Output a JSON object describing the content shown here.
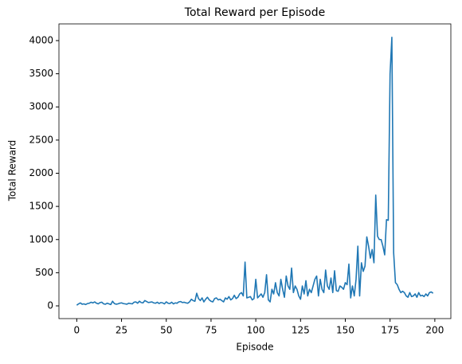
{
  "chart_data": {
    "type": "line",
    "title": "Total Reward per Episode",
    "x_label": "Episode",
    "y_label": "Total Reward",
    "x": [
      0,
      1,
      2,
      3,
      4,
      5,
      6,
      7,
      8,
      9,
      10,
      11,
      12,
      13,
      14,
      15,
      16,
      17,
      18,
      19,
      20,
      21,
      22,
      23,
      24,
      25,
      26,
      27,
      28,
      29,
      30,
      31,
      32,
      33,
      34,
      35,
      36,
      37,
      38,
      39,
      40,
      41,
      42,
      43,
      44,
      45,
      46,
      47,
      48,
      49,
      50,
      51,
      52,
      53,
      54,
      55,
      56,
      57,
      58,
      59,
      60,
      61,
      62,
      63,
      64,
      65,
      66,
      67,
      68,
      69,
      70,
      71,
      72,
      73,
      74,
      75,
      76,
      77,
      78,
      79,
      80,
      81,
      82,
      83,
      84,
      85,
      86,
      87,
      88,
      89,
      90,
      91,
      92,
      93,
      94,
      95,
      96,
      97,
      98,
      99,
      100,
      101,
      102,
      103,
      104,
      105,
      106,
      107,
      108,
      109,
      110,
      111,
      112,
      113,
      114,
      115,
      116,
      117,
      118,
      119,
      120,
      121,
      122,
      123,
      124,
      125,
      126,
      127,
      128,
      129,
      130,
      131,
      132,
      133,
      134,
      135,
      136,
      137,
      138,
      139,
      140,
      141,
      142,
      143,
      144,
      145,
      146,
      147,
      148,
      149,
      150,
      151,
      152,
      153,
      154,
      155,
      156,
      157,
      158,
      159,
      160,
      161,
      162,
      163,
      164,
      165,
      166,
      167,
      168,
      169,
      170,
      171,
      172,
      173,
      174,
      175,
      176,
      177,
      178,
      179,
      180,
      181,
      182,
      183,
      184,
      185,
      186,
      187,
      188,
      189,
      190,
      191,
      192,
      193,
      194,
      195,
      196,
      197,
      198,
      199
    ],
    "series": [
      {
        "name": "Total Reward",
        "color": "#1f77b4",
        "values": [
          10,
          30,
          45,
          25,
          30,
          20,
          35,
          40,
          55,
          45,
          60,
          40,
          30,
          50,
          55,
          30,
          25,
          40,
          30,
          20,
          70,
          35,
          25,
          30,
          40,
          45,
          35,
          30,
          25,
          40,
          35,
          30,
          55,
          60,
          40,
          70,
          50,
          45,
          80,
          65,
          50,
          55,
          60,
          45,
          40,
          55,
          35,
          50,
          45,
          30,
          60,
          40,
          35,
          55,
          30,
          45,
          40,
          60,
          65,
          50,
          55,
          45,
          40,
          60,
          100,
          80,
          70,
          190,
          110,
          80,
          120,
          60,
          100,
          130,
          90,
          70,
          60,
          110,
          120,
          90,
          100,
          80,
          60,
          120,
          100,
          140,
          90,
          110,
          160,
          110,
          130,
          180,
          200,
          150,
          660,
          120,
          130,
          140,
          90,
          110,
          400,
          120,
          150,
          180,
          130,
          200,
          470,
          90,
          60,
          250,
          180,
          350,
          200,
          150,
          400,
          250,
          130,
          450,
          300,
          250,
          570,
          200,
          300,
          250,
          150,
          100,
          300,
          180,
          380,
          150,
          250,
          200,
          300,
          400,
          450,
          150,
          400,
          250,
          200,
          540,
          300,
          250,
          420,
          200,
          530,
          230,
          220,
          300,
          280,
          250,
          350,
          320,
          630,
          120,
          300,
          150,
          400,
          900,
          150,
          650,
          520,
          600,
          1040,
          900,
          720,
          850,
          650,
          1670,
          1050,
          1000,
          1000,
          900,
          770,
          1300,
          1290,
          3500,
          4050,
          800,
          350,
          320,
          250,
          200,
          220,
          200,
          150,
          130,
          200,
          140,
          150,
          180,
          130,
          200,
          150,
          160,
          140,
          180,
          150,
          200,
          210,
          190
        ]
      }
    ],
    "xlim": [
      -9.95,
      208.95
    ],
    "xticks": [
      0,
      25,
      50,
      75,
      100,
      125,
      150,
      175,
      200
    ],
    "ylim": [
      -192,
      4252
    ],
    "yticks": [
      0,
      500,
      1000,
      1500,
      2000,
      2500,
      3000,
      3500,
      4000
    ]
  }
}
